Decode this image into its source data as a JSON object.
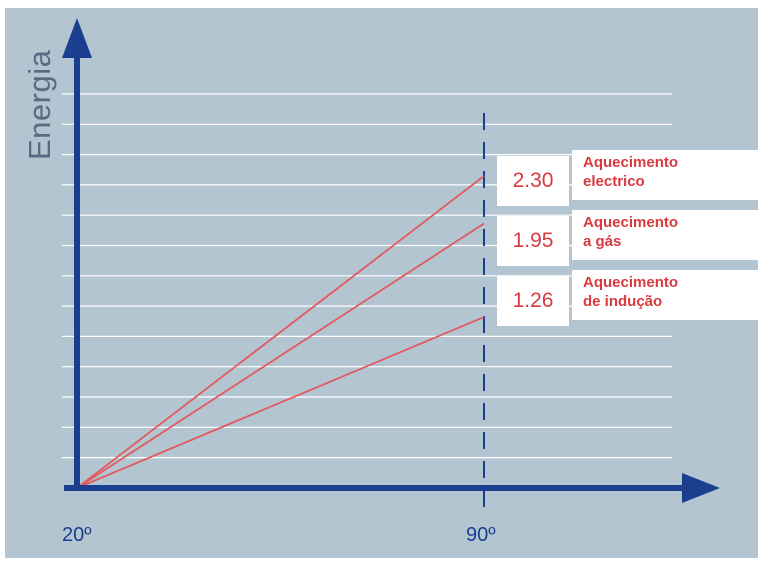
{
  "chart_data": {
    "type": "line",
    "ylabel": "Energia",
    "xlabel": "",
    "x_ticks": [
      "20º",
      "90º"
    ],
    "x": [
      20,
      90
    ],
    "grid": true,
    "series": [
      {
        "name": "Aquecimento eléctrico",
        "label_line1": "Aquecimento",
        "label_line2": "electrico",
        "value_label": "2.30",
        "values": [
          0,
          2.3
        ]
      },
      {
        "name": "Aquecimento a gás",
        "label_line1": "Aquecimento",
        "label_line2": "a gás",
        "value_label": "1.95",
        "values": [
          0,
          1.95
        ]
      },
      {
        "name": "Aquecimento de indução",
        "label_line1": "Aquecimento",
        "label_line2": "de indução",
        "value_label": "1.26",
        "values": [
          0,
          1.26
        ]
      }
    ]
  },
  "colors": {
    "background": "#b4c5d2",
    "axis": "#1a3f8f",
    "gridline": "#ffffff",
    "series_line": "#e25a5f",
    "label_text": "#d83a3e",
    "ylabel_text": "#5a6a82"
  }
}
